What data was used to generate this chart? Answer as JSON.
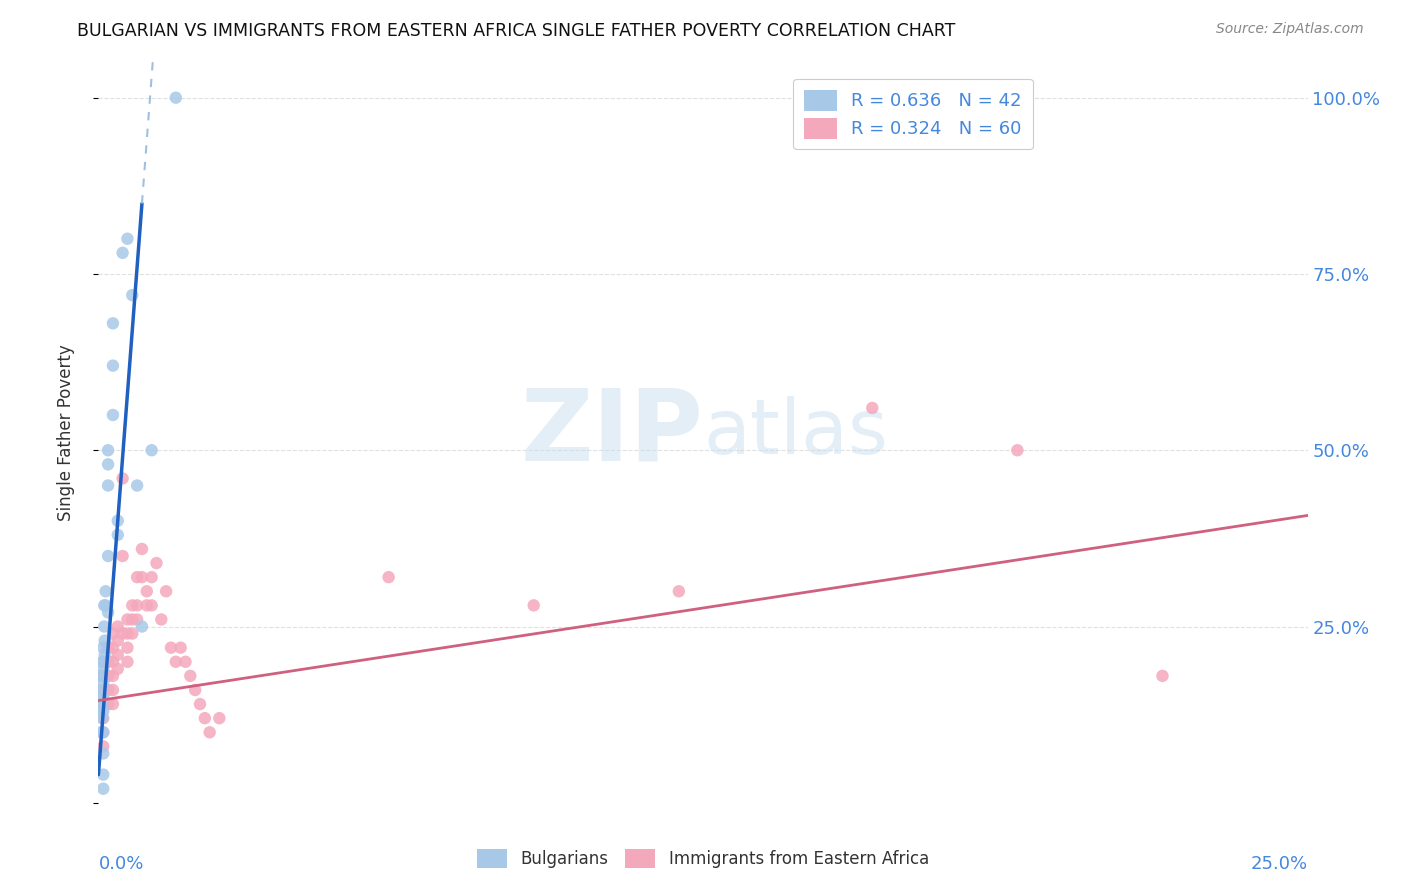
{
  "title": "BULGARIAN VS IMMIGRANTS FROM EASTERN AFRICA SINGLE FATHER POVERTY CORRELATION CHART",
  "source": "Source: ZipAtlas.com",
  "ylabel": "Single Father Poverty",
  "legend1_color": "#a8c8e8",
  "legend2_color": "#f4a8bc",
  "trendline1_color": "#2060c0",
  "trendline2_color": "#d06080",
  "trendline1_dashed_color": "#a0c0e0",
  "bg_color": "#ffffff",
  "grid_color": "#e0e0e0",
  "blue_x": [
    0.0005,
    0.0005,
    0.0005,
    0.0005,
    0.0008,
    0.0008,
    0.0008,
    0.0008,
    0.0008,
    0.001,
    0.001,
    0.001,
    0.001,
    0.001,
    0.001,
    0.001,
    0.001,
    0.001,
    0.001,
    0.0012,
    0.0012,
    0.0013,
    0.0013,
    0.0015,
    0.0015,
    0.002,
    0.002,
    0.002,
    0.002,
    0.002,
    0.003,
    0.003,
    0.003,
    0.004,
    0.004,
    0.005,
    0.006,
    0.007,
    0.008,
    0.009,
    0.011,
    0.016
  ],
  "blue_y": [
    0.18,
    0.15,
    0.13,
    0.1,
    0.2,
    0.18,
    0.16,
    0.14,
    0.12,
    0.22,
    0.2,
    0.19,
    0.17,
    0.15,
    0.13,
    0.1,
    0.07,
    0.04,
    0.02,
    0.25,
    0.28,
    0.23,
    0.21,
    0.3,
    0.28,
    0.45,
    0.48,
    0.5,
    0.35,
    0.27,
    0.62,
    0.68,
    0.55,
    0.4,
    0.38,
    0.78,
    0.8,
    0.72,
    0.45,
    0.25,
    0.5,
    1.0
  ],
  "pink_x": [
    0.001,
    0.001,
    0.001,
    0.001,
    0.001,
    0.001,
    0.001,
    0.002,
    0.002,
    0.002,
    0.002,
    0.002,
    0.003,
    0.003,
    0.003,
    0.003,
    0.003,
    0.003,
    0.004,
    0.004,
    0.004,
    0.004,
    0.005,
    0.005,
    0.005,
    0.006,
    0.006,
    0.006,
    0.006,
    0.007,
    0.007,
    0.007,
    0.008,
    0.008,
    0.008,
    0.009,
    0.009,
    0.01,
    0.01,
    0.011,
    0.011,
    0.012,
    0.013,
    0.014,
    0.015,
    0.016,
    0.017,
    0.018,
    0.019,
    0.02,
    0.021,
    0.022,
    0.023,
    0.025,
    0.06,
    0.09,
    0.12,
    0.16,
    0.19,
    0.22
  ],
  "pink_y": [
    0.2,
    0.18,
    0.16,
    0.14,
    0.12,
    0.1,
    0.08,
    0.22,
    0.2,
    0.18,
    0.16,
    0.14,
    0.24,
    0.22,
    0.2,
    0.18,
    0.16,
    0.14,
    0.25,
    0.23,
    0.21,
    0.19,
    0.46,
    0.35,
    0.24,
    0.26,
    0.24,
    0.22,
    0.2,
    0.28,
    0.26,
    0.24,
    0.32,
    0.28,
    0.26,
    0.36,
    0.32,
    0.3,
    0.28,
    0.32,
    0.28,
    0.34,
    0.26,
    0.3,
    0.22,
    0.2,
    0.22,
    0.2,
    0.18,
    0.16,
    0.14,
    0.12,
    0.1,
    0.12,
    0.32,
    0.28,
    0.3,
    0.56,
    0.5,
    0.18
  ],
  "xlim": [
    0.0,
    0.25
  ],
  "ylim": [
    0.0,
    1.05
  ],
  "blue_trend_x0": 0.0,
  "blue_trend_x1_solid": 0.009,
  "blue_trend_x1_dash": 0.013,
  "blue_trend_y0": 0.04,
  "blue_trend_slope": 90.0,
  "pink_trend_x0": 0.0,
  "pink_trend_x1": 0.25,
  "pink_trend_y0": 0.145,
  "pink_trend_slope": 1.05,
  "xtick_positions": [
    0.0,
    0.05,
    0.1,
    0.15,
    0.2,
    0.25
  ],
  "ytick_positions": [
    0.0,
    0.25,
    0.5,
    0.75,
    1.0
  ],
  "right_ytick_labels": [
    "",
    "25.0%",
    "50.0%",
    "75.0%",
    "100.0%"
  ],
  "right_ytick_color": "#4488dd",
  "bottom_xtick_color": "#4488dd"
}
